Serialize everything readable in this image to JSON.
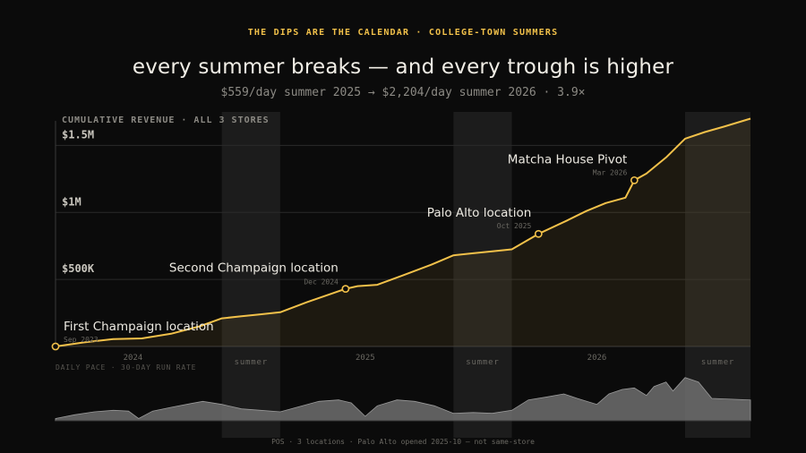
{
  "header": {
    "kicker": "THE DIPS ARE THE CALENDAR · COLLEGE-TOWN SUMMERS",
    "title": "every summer breaks — and every trough is higher",
    "subtitle": "$559/day summer 2025 → $2,204/day summer 2026 · 3.9×"
  },
  "footer": "POS · 3 locations · Palo Alto opened 2025-10 — not same-store",
  "colors": {
    "accent": "#f2c14a",
    "background": "#0b0b0b",
    "pace_area": "#6e6e6e",
    "summer_band": "#1c1c1c"
  },
  "chart_data": [
    {
      "type": "line",
      "ylabel": "CUMULATIVE REVENUE · ALL 3 STORES",
      "xlim": [
        "2023-09-01",
        "2026-08-31"
      ],
      "ylim": [
        0,
        1750000
      ],
      "yticks": [
        500000,
        1000000,
        1500000
      ],
      "ytick_labels": [
        "$500K",
        "$1M",
        "$1.5M"
      ],
      "xtick_labels": [
        "2024",
        "2025",
        "2026"
      ],
      "xticks": [
        "2024-01-01",
        "2025-01-01",
        "2026-01-01"
      ],
      "summer_label": "summer",
      "summers": [
        [
          "2024-05-20",
          "2024-08-20"
        ],
        [
          "2025-05-20",
          "2025-08-20"
        ],
        [
          "2026-05-20",
          "2026-08-31"
        ]
      ],
      "grid": true,
      "series": [
        {
          "x": [
            "2023-09-01",
            "2023-10-15",
            "2023-12-01",
            "2024-01-15",
            "2024-03-01",
            "2024-04-15",
            "2024-05-20",
            "2024-06-20",
            "2024-07-20",
            "2024-08-20",
            "2024-10-01",
            "2024-12-01",
            "2024-12-20",
            "2025-01-20",
            "2025-03-01",
            "2025-04-15",
            "2025-05-20",
            "2025-06-20",
            "2025-07-20",
            "2025-08-20",
            "2025-10-01",
            "2025-11-15",
            "2025-12-15",
            "2026-01-15",
            "2026-02-15",
            "2026-03-01",
            "2026-03-20",
            "2026-04-20",
            "2026-05-20",
            "2026-06-20",
            "2026-07-20",
            "2026-08-31"
          ],
          "y": [
            0,
            30000,
            55000,
            60000,
            95000,
            150000,
            210000,
            225000,
            240000,
            255000,
            330000,
            430000,
            450000,
            460000,
            530000,
            610000,
            680000,
            695000,
            710000,
            725000,
            840000,
            940000,
            1010000,
            1070000,
            1110000,
            1240000,
            1290000,
            1410000,
            1550000,
            1600000,
            1640000,
            1700000
          ]
        }
      ],
      "annotations": [
        {
          "label": "First Champaign location",
          "date_label": "Sep 2023",
          "x": "2023-09-01",
          "y": 0
        },
        {
          "label": "Second Champaign location",
          "date_label": "Dec 2024",
          "x": "2024-12-01",
          "y": 430000
        },
        {
          "label": "Palo Alto location",
          "date_label": "Oct 2025",
          "x": "2025-10-01",
          "y": 840000
        },
        {
          "label": "Matcha House Pivot",
          "date_label": "Mar 2026",
          "x": "2026-03-01",
          "y": 1240000
        }
      ]
    },
    {
      "type": "area",
      "ylabel": "DAILY PACE · 30-DAY RUN RATE",
      "ylim": [
        0,
        3000
      ],
      "series": [
        {
          "x": [
            "2023-09-01",
            "2023-10-01",
            "2023-11-01",
            "2023-12-01",
            "2023-12-25",
            "2024-01-10",
            "2024-02-01",
            "2024-03-01",
            "2024-04-01",
            "2024-04-20",
            "2024-05-20",
            "2024-06-20",
            "2024-07-20",
            "2024-08-20",
            "2024-09-15",
            "2024-10-20",
            "2024-11-20",
            "2024-12-10",
            "2025-01-01",
            "2025-01-20",
            "2025-02-20",
            "2025-03-20",
            "2025-04-20",
            "2025-05-20",
            "2025-06-20",
            "2025-07-20",
            "2025-08-20",
            "2025-09-15",
            "2025-10-15",
            "2025-11-10",
            "2025-12-01",
            "2026-01-01",
            "2026-01-20",
            "2026-02-10",
            "2026-03-01",
            "2026-03-20",
            "2026-04-01",
            "2026-04-20",
            "2026-05-01",
            "2026-05-20",
            "2026-06-10",
            "2026-07-01",
            "2026-08-31"
          ],
          "y": [
            150,
            400,
            600,
            700,
            650,
            150,
            650,
            900,
            1150,
            1300,
            1100,
            800,
            700,
            600,
            900,
            1300,
            1400,
            1200,
            300,
            1000,
            1400,
            1300,
            1000,
            500,
            550,
            500,
            700,
            1400,
            1600,
            1800,
            1500,
            1100,
            1800,
            2100,
            2200,
            1700,
            2300,
            2600,
            2000,
            2900,
            2600,
            1500,
            1400
          ]
        }
      ]
    }
  ]
}
